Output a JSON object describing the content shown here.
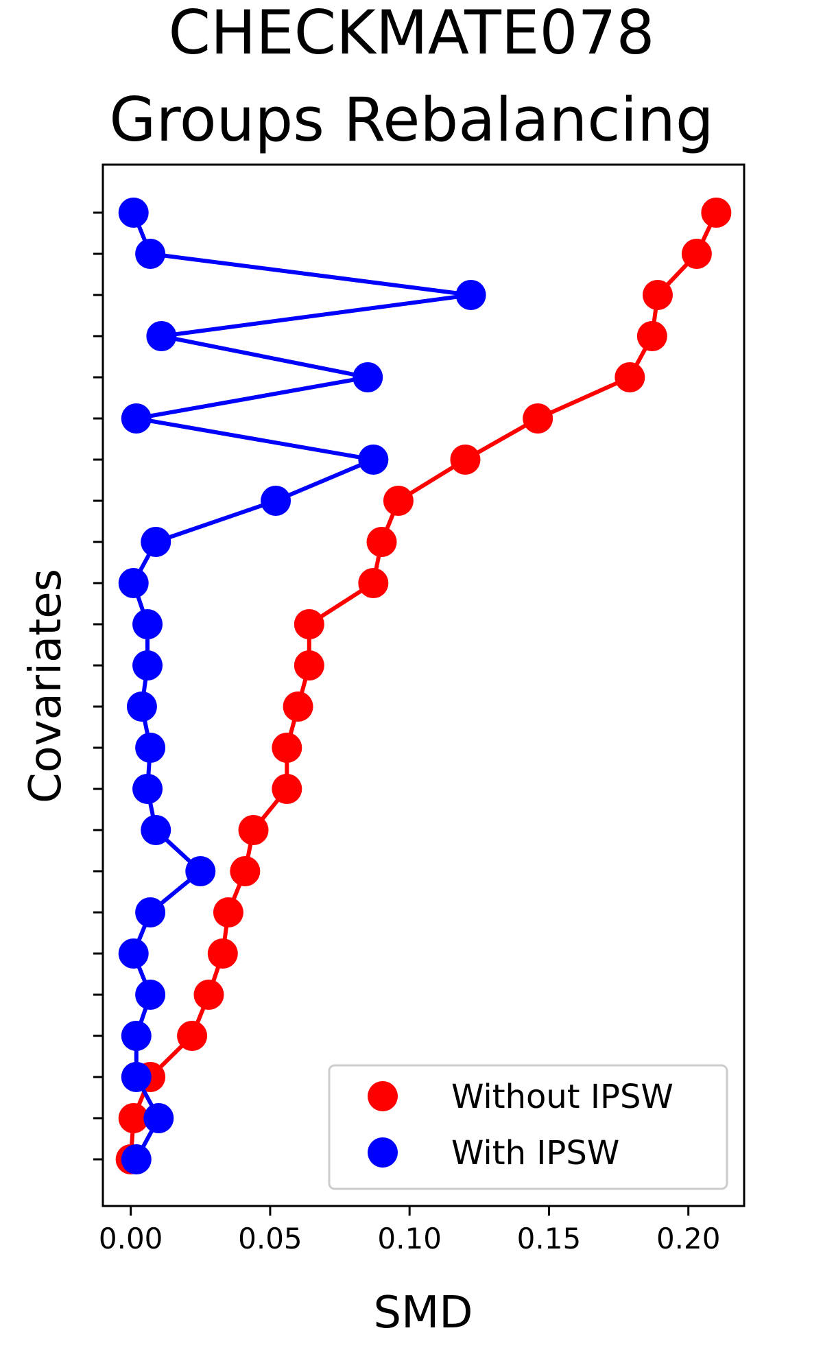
{
  "chart_data": {
    "type": "line",
    "title_lines": [
      "CHECKMATE078",
      "Groups Rebalancing"
    ],
    "xlabel": "SMD",
    "ylabel": "Covariates",
    "xlim": [
      -0.01,
      0.22
    ],
    "x_ticks": [
      0.0,
      0.05,
      0.1,
      0.15,
      0.2
    ],
    "x_tick_labels": [
      "0.00",
      "0.05",
      "0.10",
      "0.15",
      "0.20"
    ],
    "y_tick_count": 24,
    "y_tick_labels_visible": false,
    "grid": false,
    "legend_position": "lower-right",
    "series": [
      {
        "name": "Without IPSW",
        "color": "#ff0000",
        "values": [
          0.21,
          0.203,
          0.189,
          0.187,
          0.179,
          0.146,
          0.12,
          0.096,
          0.09,
          0.087,
          0.064,
          0.064,
          0.06,
          0.056,
          0.056,
          0.044,
          0.041,
          0.035,
          0.033,
          0.028,
          0.022,
          0.007,
          0.001,
          0.0
        ]
      },
      {
        "name": "With IPSW",
        "color": "#0000ff",
        "values": [
          0.001,
          0.007,
          0.122,
          0.011,
          0.085,
          0.002,
          0.087,
          0.052,
          0.009,
          0.001,
          0.006,
          0.006,
          0.004,
          0.007,
          0.006,
          0.009,
          0.025,
          0.007,
          0.001,
          0.007,
          0.002,
          0.002,
          0.01,
          0.002
        ]
      }
    ]
  }
}
